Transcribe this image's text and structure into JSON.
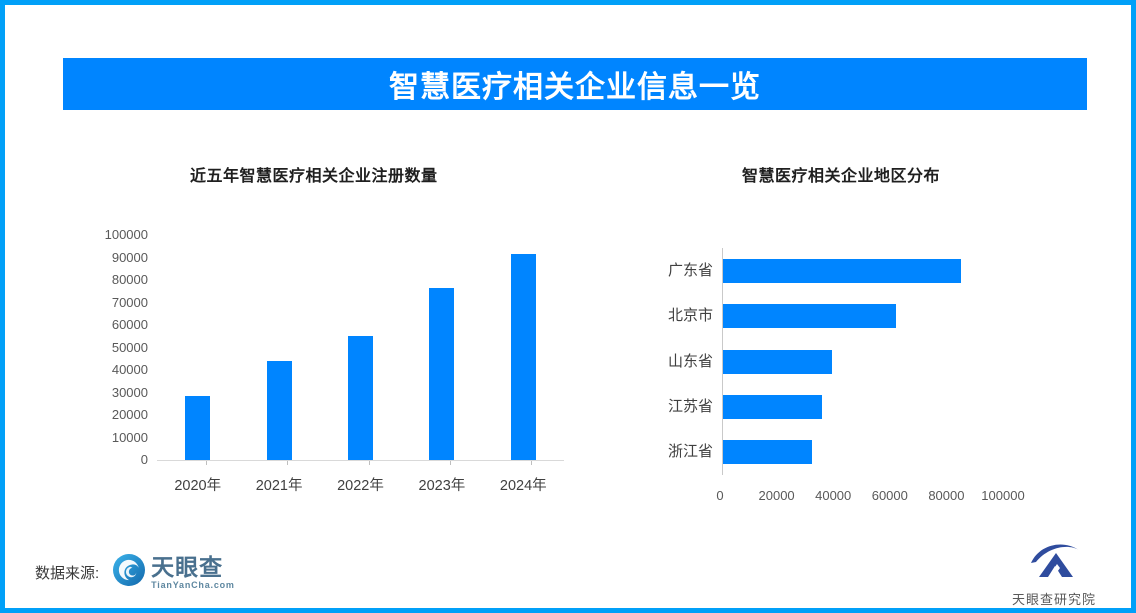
{
  "banner": {
    "title": "智慧医疗相关企业信息一览"
  },
  "colors": {
    "accent_blue": "#0085FF",
    "border_blue": "#01A0F8",
    "axis_line": "#D9D9D9",
    "institute_navy": "#2F4C9E",
    "tyc_logo_blue": "#1E87C9"
  },
  "chart_data": [
    {
      "type": "bar",
      "title": "近五年智慧医疗相关企业注册数量",
      "categories": [
        "2020年",
        "2021年",
        "2022年",
        "2023年",
        "2024年"
      ],
      "values": [
        28500,
        44000,
        55000,
        76500,
        91500
      ],
      "ylim": [
        0,
        100000
      ],
      "ytick_labels": [
        "0",
        "10000",
        "20000",
        "30000",
        "40000",
        "50000",
        "60000",
        "70000",
        "80000",
        "90000",
        "100000"
      ],
      "bar_color": "#0085FF",
      "grid": false,
      "legend": "none"
    },
    {
      "type": "bar",
      "orientation": "horizontal",
      "title": "智慧医疗相关企业地区分布",
      "categories": [
        "广东省",
        "北京市",
        "山东省",
        "江苏省",
        "浙江省"
      ],
      "values": [
        84000,
        61000,
        38500,
        35000,
        31500
      ],
      "xlim": [
        0,
        100000
      ],
      "xtick_labels": [
        "0",
        "20000",
        "40000",
        "60000",
        "80000",
        "100000"
      ],
      "bar_color": "#0085FF",
      "grid": false,
      "legend": "none"
    }
  ],
  "footer": {
    "source_label": "数据来源:",
    "source_logo_text": "天眼查",
    "source_logo_sub": "TianYanCha.com",
    "institute_logo_text": "天眼查研究院"
  }
}
